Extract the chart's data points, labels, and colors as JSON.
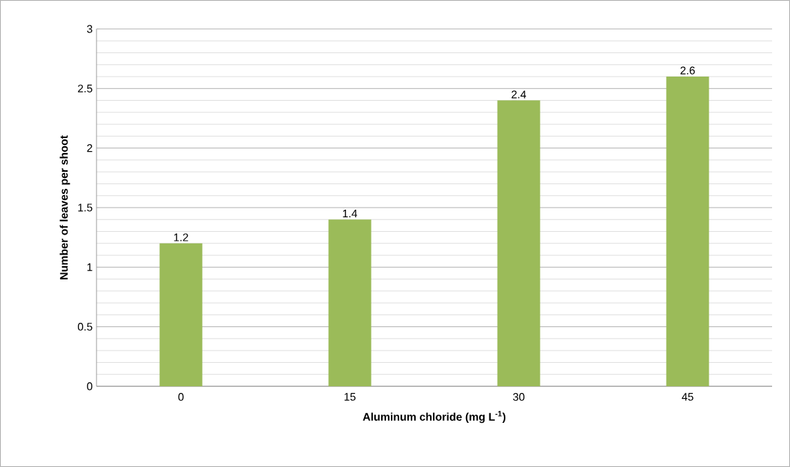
{
  "chart_data": {
    "type": "bar",
    "xlabel": "**Aluminum chloride (mg L$^{-1}$)**",
    "ylabel": "Number of leaves per shoot",
    "categories": [
      "0",
      "15",
      "30",
      "45"
    ],
    "values": [
      1.2,
      1.4,
      2.4,
      2.6
    ],
    "color": "#9bbb59",
    "ylim": [
      0,
      3
    ],
    "yticks": [
      0,
      0.5,
      1,
      1.5,
      2,
      2.5,
      3
    ],
    "grid": "y",
    "data_labels": true
  }
}
